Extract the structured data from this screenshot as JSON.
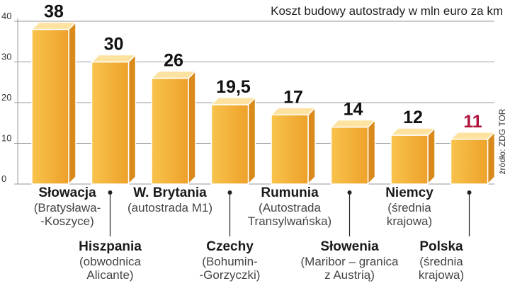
{
  "chart_data": {
    "type": "bar",
    "title": "Koszt budowy autostrady w mln euro za km",
    "source": "źródło: ZDG TOR",
    "ylim": [
      0,
      40
    ],
    "y_ticks": [
      0,
      10,
      20,
      30,
      40
    ],
    "grid": true,
    "categories": [
      {
        "name": "Słowacja",
        "detail": "(Bratysława-\n-Koszyce)"
      },
      {
        "name": "Hiszpania",
        "detail": "(obwodnica\nAlicante)"
      },
      {
        "name": "W. Brytania",
        "detail": "(autostrada M1)"
      },
      {
        "name": "Czechy",
        "detail": "(Bohumin-\n-Gorzyczki)"
      },
      {
        "name": "Rumunia",
        "detail": "(Autostrada\nTransylwańska)"
      },
      {
        "name": "Słowenia",
        "detail": "(Maribor – granica\nz Austrią)"
      },
      {
        "name": "Niemcy",
        "detail": "(średnia\nkrajowa)"
      },
      {
        "name": "Polska",
        "detail": "(średnia\nkrajowa)"
      }
    ],
    "values": [
      38,
      30,
      26,
      19.5,
      17,
      14,
      12,
      11
    ],
    "value_labels": [
      "38",
      "30",
      "26",
      "19,5",
      "17",
      "14",
      "12",
      "11"
    ],
    "label_positions": [
      "below",
      "stem",
      "below",
      "stem",
      "below",
      "stem",
      "below",
      "stem"
    ],
    "highlight_index": 7,
    "colors": {
      "bar_front_light": "#f8c34c",
      "bar_front_dark": "#eea12a",
      "bar_top": "#fde2a0",
      "bar_side": "#d98a1b",
      "outline": "#ffffff",
      "grid": "#9a9a9a",
      "value": "#111111",
      "highlight": "#b0123a",
      "stem": "#222222"
    }
  }
}
